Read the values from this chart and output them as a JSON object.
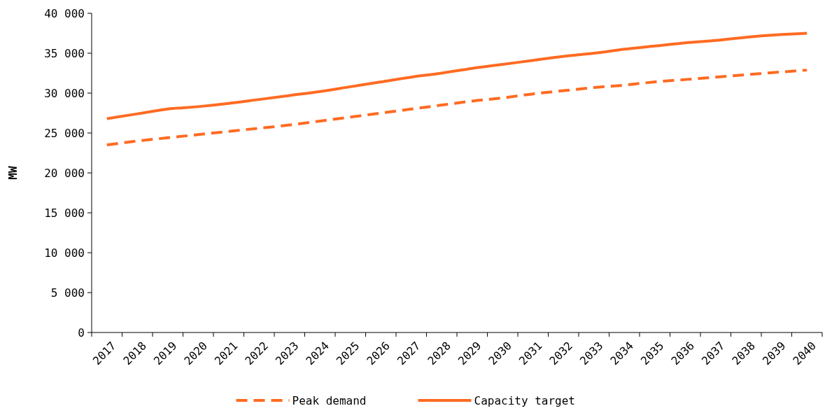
{
  "chart_data": {
    "type": "line",
    "ylabel": "MW",
    "categories": [
      "2017",
      "2018",
      "2019",
      "2020",
      "2021",
      "2022",
      "2023",
      "2024",
      "2025",
      "2026",
      "2027",
      "2028",
      "2029",
      "2030",
      "2031",
      "2032",
      "2033",
      "2034",
      "2035",
      "2036",
      "2037",
      "2038",
      "2039",
      "2040"
    ],
    "series": [
      {
        "name": "Peak demand",
        "color": "#ff6b22",
        "line_style": "dashed",
        "values": [
          23500,
          24000,
          24400,
          24800,
          25200,
          25600,
          26000,
          26500,
          27000,
          27500,
          28000,
          28500,
          29000,
          29400,
          29900,
          30300,
          30700,
          31000,
          31400,
          31700,
          32000,
          32300,
          32600,
          32900
        ]
      },
      {
        "name": "Capacity target",
        "color": "#ff6b22",
        "line_style": "solid",
        "values": [
          26800,
          27400,
          28000,
          28300,
          28700,
          29200,
          29700,
          30200,
          30800,
          31400,
          32000,
          32500,
          33100,
          33600,
          34100,
          34600,
          35000,
          35500,
          35900,
          36300,
          36600,
          37000,
          37300,
          37500
        ]
      }
    ],
    "ylim": [
      0,
      40000
    ],
    "yticks": [
      {
        "value": 0,
        "label": "0"
      },
      {
        "value": 5000,
        "label": "5 000"
      },
      {
        "value": 10000,
        "label": "10 000"
      },
      {
        "value": 15000,
        "label": "15 000"
      },
      {
        "value": 20000,
        "label": "20 000"
      },
      {
        "value": 25000,
        "label": "25 000"
      },
      {
        "value": 30000,
        "label": "30 000"
      },
      {
        "value": 35000,
        "label": "35 000"
      },
      {
        "value": 40000,
        "label": "40 000"
      }
    ],
    "grid": false,
    "legend": "bottom"
  }
}
